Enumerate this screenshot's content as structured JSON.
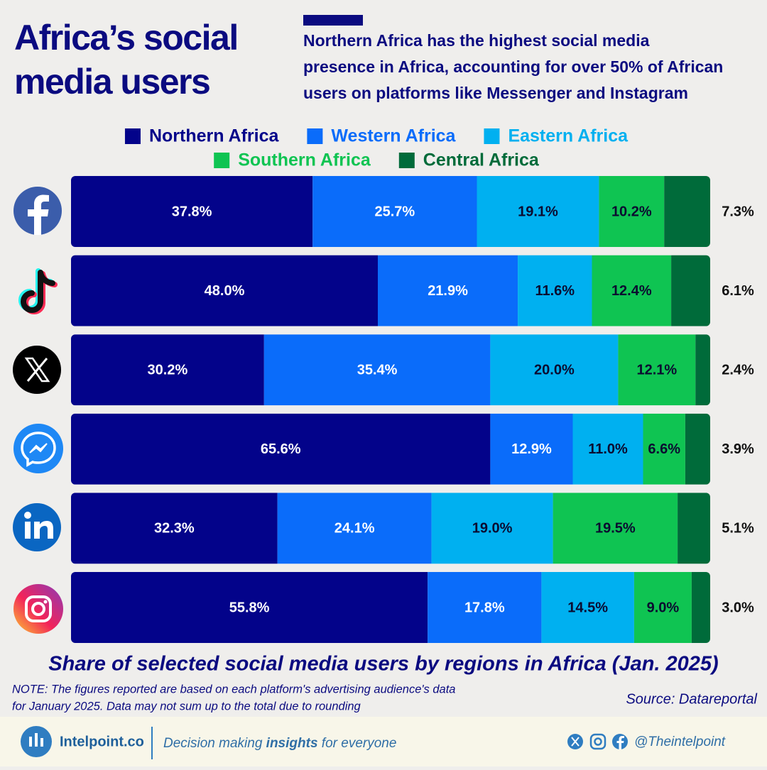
{
  "chart_data": {
    "type": "stacked-bar",
    "title": [
      "Africa’s social",
      "media users"
    ],
    "subtitle": [
      "Northern Africa has the highest social media",
      "presence in Africa, accounting for over 50% of African",
      "users on platforms like Messenger and Instagram"
    ],
    "caption": "Share of selected social media users by regions in Africa (Jan. 2025)",
    "note": [
      "NOTE: The figures reported are based on each platform's advertising audience's data",
      "for January 2025. Data may not sum up to the total due to rounding"
    ],
    "source": "Source: Datareportal",
    "categories": [
      null,
      null,
      null,
      null,
      null,
      null
    ],
    "xlim": [
      0,
      100
    ],
    "series": [
      {
        "name": "Northern Africa",
        "color": "#03038a",
        "label_color": "#ffffff",
        "values": [
          37.8,
          48.0,
          30.2,
          65.6,
          32.3,
          55.8
        ],
        "value_labels": [
          "37.8%",
          "48.0%",
          "30.2%",
          "65.6%",
          "32.3%",
          "55.8%"
        ]
      },
      {
        "name": "Western Africa",
        "color": "#0a6cfa",
        "label_color": "#ffffff",
        "values": [
          25.7,
          21.9,
          35.4,
          12.9,
          24.1,
          17.8
        ],
        "value_labels": [
          "25.7%",
          "21.9%",
          "35.4%",
          "12.9%",
          "24.1%",
          "17.8%"
        ]
      },
      {
        "name": "Eastern Africa",
        "color": "#00b0f0",
        "label_color": "#0b0b30",
        "values": [
          19.1,
          11.6,
          20.0,
          11.0,
          19.0,
          14.5
        ],
        "value_labels": [
          "19.1%",
          "11.6%",
          "20.0%",
          "11.0%",
          "19.0%",
          "14.5%"
        ]
      },
      {
        "name": "Southern Africa",
        "color": "#0fc452",
        "label_color": "#0b0b30",
        "values": [
          10.2,
          12.4,
          12.1,
          6.6,
          19.5,
          9.0
        ],
        "value_labels": [
          "10.2%",
          "12.4%",
          "12.1%",
          "6.6%",
          "19.5%",
          "9.0%"
        ]
      },
      {
        "name": "Central Africa",
        "color": "#006b3a",
        "label_color": "#111111",
        "values": [
          7.3,
          6.1,
          2.4,
          3.9,
          5.1,
          3.0
        ],
        "value_labels": [
          "7.3%",
          "6.1%",
          "2.4%",
          "3.9%",
          "5.1%",
          "3.0%"
        ]
      }
    ]
  },
  "footer": {
    "brand": "Intelpoint.co",
    "tagline": [
      "Decision making ",
      "insights",
      " for everyone"
    ],
    "handle": "@Theintelpoint"
  }
}
